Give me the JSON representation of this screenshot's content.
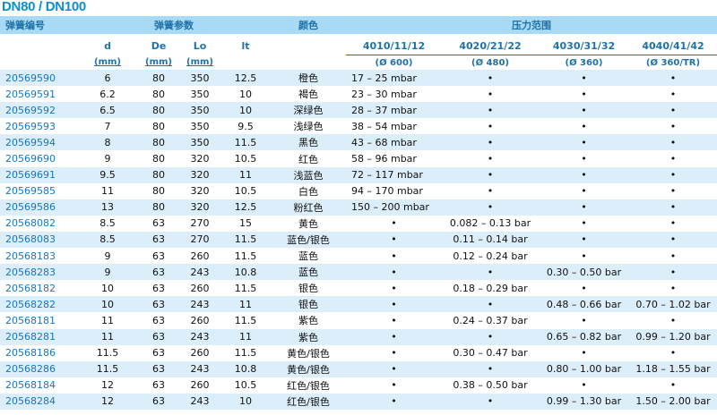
{
  "title": "DN80 / DN100",
  "header": {
    "part_number": "弹簧编号",
    "spring_params": "弹簧参数",
    "color": "颜色",
    "pressure_range": "压力范围",
    "d": "d",
    "De": "De",
    "Lo": "Lo",
    "lt": "lt",
    "mm": "(mm)",
    "p1": "4010/11/12",
    "p1_sub": "(Ø 600)",
    "p2": "4020/21/22",
    "p2_sub": "(Ø 480)",
    "p3": "4030/31/32",
    "p3_sub": "(Ø 360)",
    "p4": "4040/41/42",
    "p4_sub": "(Ø 360/TR)"
  },
  "rows": [
    [
      "20569590",
      "6",
      "80",
      "350",
      "12.5",
      "橙色",
      "17 – 25 mbar",
      "•",
      "•",
      "•"
    ],
    [
      "20569591",
      "6.2",
      "80",
      "350",
      "10",
      "褐色",
      "23 – 30 mbar",
      "•",
      "•",
      "•"
    ],
    [
      "20569592",
      "6.5",
      "80",
      "350",
      "10",
      "深绿色",
      "28 – 37 mbar",
      "•",
      "•",
      "•"
    ],
    [
      "20569593",
      "7",
      "80",
      "350",
      "9.5",
      "浅绿色",
      "38 – 54 mbar",
      "•",
      "•",
      "•"
    ],
    [
      "20569594",
      "8",
      "80",
      "350",
      "11.5",
      "黑色",
      "43 – 68 mbar",
      "•",
      "•",
      "•"
    ],
    [
      "20569690",
      "9",
      "80",
      "320",
      "10.5",
      "红色",
      "58 – 96 mbar",
      "•",
      "•",
      "•"
    ],
    [
      "20569691",
      "9.5",
      "80",
      "320",
      "11",
      "浅蓝色",
      "72 – 117 mbar",
      "•",
      "•",
      "•"
    ],
    [
      "20569585",
      "11",
      "80",
      "320",
      "10.5",
      "白色",
      "94 – 170 mbar",
      "•",
      "•",
      "•"
    ],
    [
      "20569586",
      "13",
      "80",
      "320",
      "12.5",
      "粉红色",
      "150 – 200 mbar",
      "•",
      "•",
      "•"
    ],
    [
      "20568082",
      "8.5",
      "63",
      "270",
      "15",
      "黄色",
      "•",
      "0.082 – 0.13 bar",
      "•",
      "•"
    ],
    [
      "20568083",
      "8.5",
      "63",
      "270",
      "11.5",
      "蓝色/银色",
      "•",
      "0.11 – 0.14 bar",
      "•",
      "•"
    ],
    [
      "20568183",
      "9",
      "63",
      "260",
      "11.5",
      "蓝色",
      "•",
      "0.12 – 0.24 bar",
      "•",
      "•"
    ],
    [
      "20568283",
      "9",
      "63",
      "243",
      "10.8",
      "蓝色",
      "•",
      "•",
      "0.30 – 0.50 bar",
      "•"
    ],
    [
      "20568182",
      "10",
      "63",
      "260",
      "11.5",
      "银色",
      "•",
      "0.18 – 0.29 bar",
      "•",
      "•"
    ],
    [
      "20568282",
      "10",
      "63",
      "243",
      "11",
      "银色",
      "•",
      "•",
      "0.48 – 0.66 bar",
      "0.70 – 1.02 bar"
    ],
    [
      "20568181",
      "11",
      "63",
      "260",
      "11.5",
      "紫色",
      "•",
      "0.24 – 0.37 bar",
      "•",
      "•"
    ],
    [
      "20568281",
      "11",
      "63",
      "243",
      "11",
      "紫色",
      "•",
      "•",
      "0.65 – 0.82 bar",
      "0.99 – 1.20 bar"
    ],
    [
      "20568186",
      "11.5",
      "63",
      "260",
      "11.5",
      "黄色/银色",
      "•",
      "0.30 – 0.47 bar",
      "•",
      "•"
    ],
    [
      "20568286",
      "11.5",
      "63",
      "243",
      "10.8",
      "黄色/银色",
      "•",
      "•",
      "0.80 – 1.00 bar",
      "1.18 – 1.55 bar"
    ],
    [
      "20568184",
      "12",
      "63",
      "260",
      "10.5",
      "红色/银色",
      "•",
      "0.38 – 0.50 bar",
      "•",
      "•"
    ],
    [
      "20568284",
      "12",
      "63",
      "243",
      "10",
      "红色/银色",
      "•",
      "•",
      "0.99 – 1.30 bar",
      "1.50 – 2.00 bar"
    ]
  ]
}
